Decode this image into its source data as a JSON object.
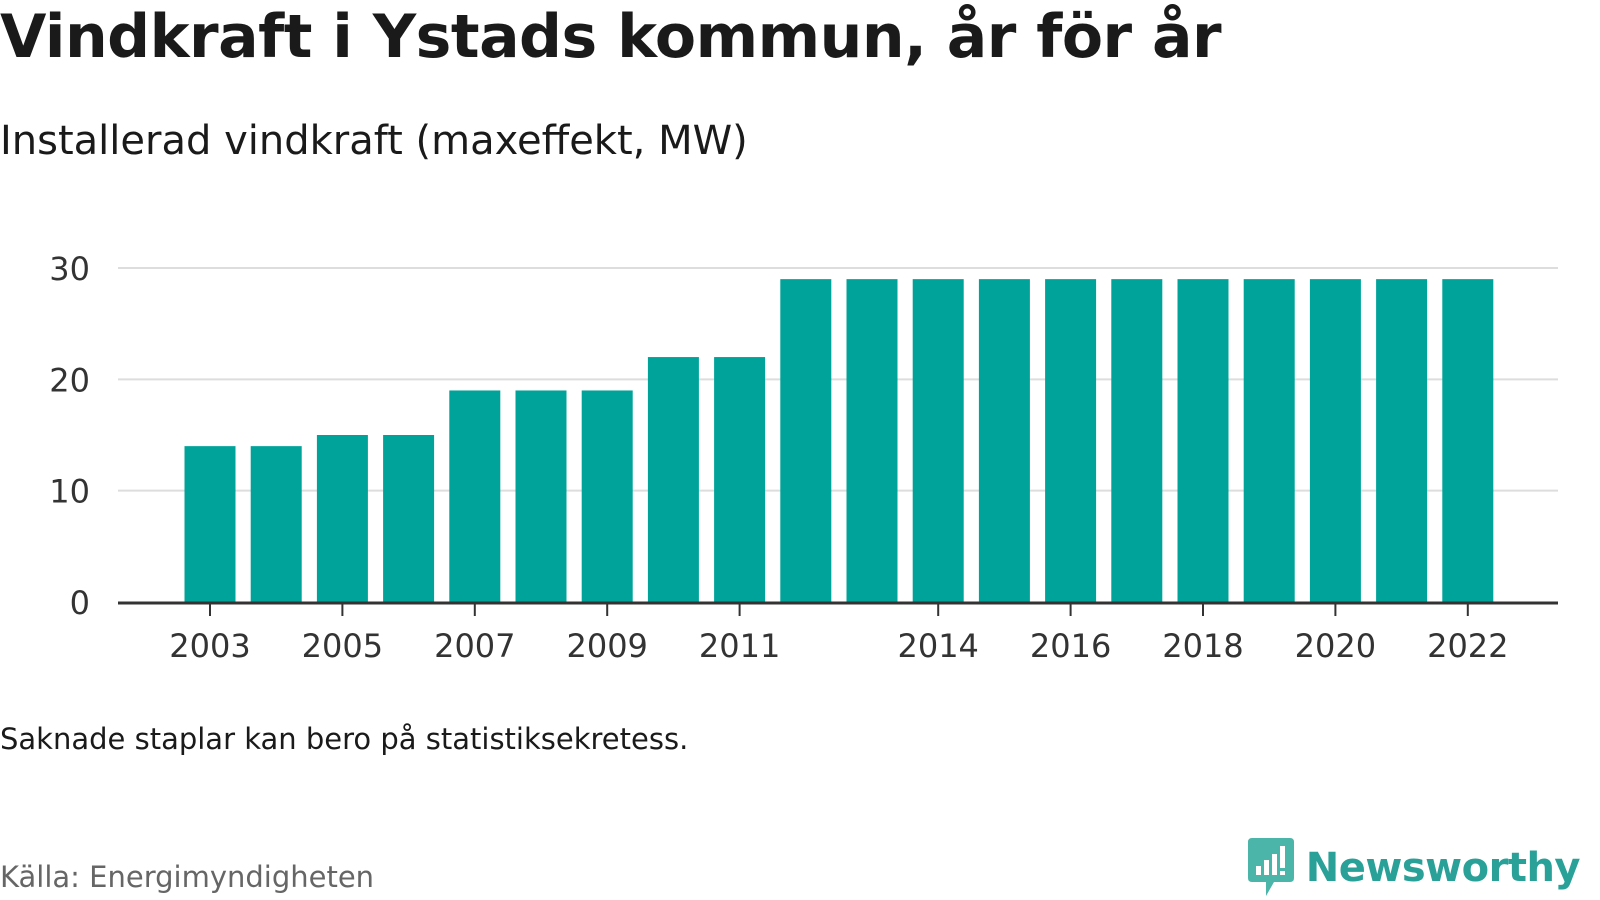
{
  "title": "Vindkraft i Ystads kommun, år för år",
  "subtitle": "Installerad vindkraft (maxeffekt, MW)",
  "note": "Saknade staplar kan bero på statistiksekretess.",
  "source": "Källa: Energimyndigheten",
  "brand": {
    "name": "Newsworthy",
    "icon": "newsworthy-logo-icon",
    "color": "#2aa198"
  },
  "colors": {
    "bar": "#00a39a",
    "grid": "#dddddd",
    "axis": "#333333"
  },
  "chart_data": {
    "type": "bar",
    "categories": [
      "2003",
      "2004",
      "2005",
      "2006",
      "2007",
      "2008",
      "2009",
      "2010",
      "2011",
      "2012",
      "2013",
      "2014",
      "2015",
      "2016",
      "2017",
      "2018",
      "2019",
      "2020",
      "2021",
      "2022"
    ],
    "values": [
      14,
      14,
      15,
      15,
      19,
      19,
      19,
      22,
      22,
      29,
      29,
      29,
      29,
      29,
      29,
      29,
      29,
      29,
      29,
      29
    ],
    "x_tick_labels": [
      "2003",
      "2005",
      "2007",
      "2009",
      "2011",
      "2014",
      "2016",
      "2018",
      "2020",
      "2022"
    ],
    "y_ticks": [
      0,
      10,
      20,
      30
    ],
    "ylim": [
      0,
      30
    ],
    "xlabel": "",
    "ylabel": "",
    "grid": true
  }
}
